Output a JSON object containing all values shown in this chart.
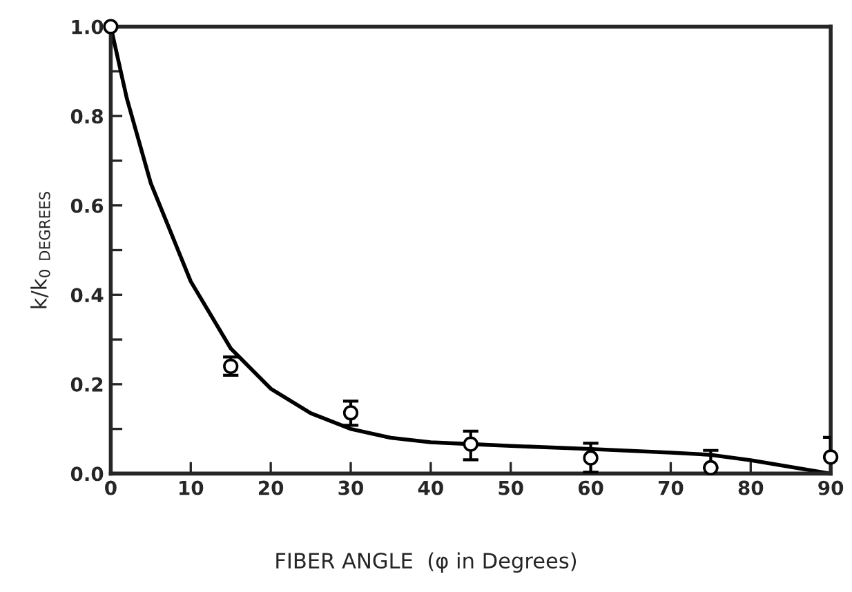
{
  "chart_data": {
    "type": "scatter",
    "xlabel": "FIBER ANGLE  (φ in Degrees)",
    "ylabel": "k/k$_{0}$ $_{DEGREES}$",
    "xlim": [
      0,
      90
    ],
    "ylim": [
      0,
      1.0
    ],
    "xticks": [
      0,
      10,
      20,
      30,
      40,
      50,
      60,
      70,
      80,
      90
    ],
    "yticks": [
      {
        "value": 0.0,
        "label": "0.0"
      },
      {
        "value": 0.1,
        "label": null
      },
      {
        "value": 0.2,
        "label": "0.2"
      },
      {
        "value": 0.3,
        "label": null
      },
      {
        "value": 0.4,
        "label": "0.4"
      },
      {
        "value": 0.5,
        "label": null
      },
      {
        "value": 0.6,
        "label": "0.6"
      },
      {
        "value": 0.7,
        "label": null
      },
      {
        "value": 0.8,
        "label": "0.8"
      },
      {
        "value": 0.9,
        "label": null
      },
      {
        "value": 1.0,
        "label": "1.0"
      }
    ],
    "grid": false,
    "legend": false,
    "series": [
      {
        "color": "#000000",
        "marker": "circle",
        "x": [
          0,
          15,
          30,
          45,
          60,
          75,
          90
        ],
        "values": [
          1.0,
          0.24,
          0.136,
          0.066,
          0.035,
          0.013,
          0.037
        ],
        "errors": [
          null,
          [
            0.22,
            0.261
          ],
          [
            0.108,
            0.162
          ],
          [
            0.031,
            0.095
          ],
          [
            0.003,
            0.068
          ],
          [
            0.013,
            0.052
          ],
          [
            0.037,
            0.081
          ]
        ]
      },
      {
        "type": "line",
        "color": "#000000",
        "marker": "none",
        "line_style": "solid",
        "x": [
          0,
          2,
          5,
          10,
          15,
          20,
          25,
          30,
          35,
          40,
          45,
          50,
          60,
          70,
          75,
          80,
          85,
          90
        ],
        "values": [
          1.0,
          0.84,
          0.65,
          0.43,
          0.28,
          0.19,
          0.135,
          0.1,
          0.08,
          0.07,
          0.066,
          0.062,
          0.055,
          0.047,
          0.042,
          0.03,
          0.015,
          0.0
        ]
      }
    ]
  }
}
